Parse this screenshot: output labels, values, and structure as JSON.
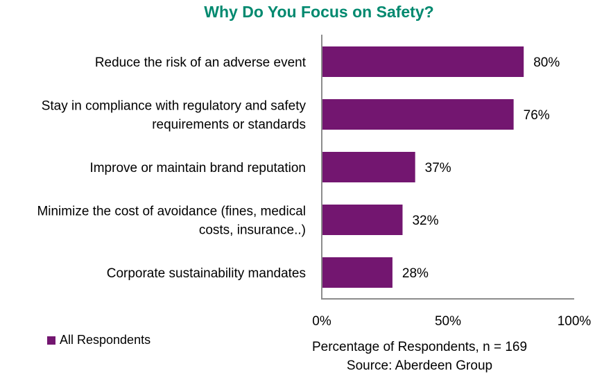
{
  "chart_data": {
    "type": "bar",
    "orientation": "horizontal",
    "title": "Why Do You Focus on Safety?",
    "categories": [
      [
        "Reduce the risk of an adverse event"
      ],
      [
        "Stay in compliance with regulatory and safety",
        "requirements or standards"
      ],
      [
        "Improve or maintain brand reputation"
      ],
      [
        "Minimize the cost of avoidance (fines, medical",
        "costs, insurance..)"
      ],
      [
        "Corporate sustainability mandates"
      ]
    ],
    "series": [
      {
        "name": "All Respondents",
        "values": [
          80,
          76,
          37,
          32,
          28
        ]
      }
    ],
    "data_labels": [
      "80%",
      "76%",
      "37%",
      "32%",
      "28%"
    ],
    "xlim": [
      0,
      100
    ],
    "xticks": [
      0,
      50,
      100
    ],
    "xtick_labels": [
      "0%",
      "50%",
      "100%"
    ],
    "xlabel": "Percentage of Respondents, n = 169",
    "source": "Source: Aberdeen Group",
    "grid": false,
    "legend_placement": "bottom-left",
    "colors": {
      "title": "#00896f",
      "bar": "#731670",
      "axis": "#8c8c8c"
    }
  }
}
